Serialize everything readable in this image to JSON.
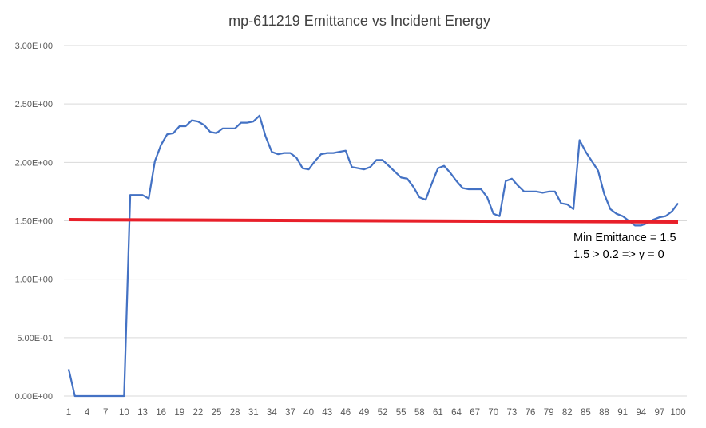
{
  "chart_data": {
    "type": "line",
    "title": "mp-611219 Emittance vs Incident Energy",
    "xlabel": "",
    "ylabel": "",
    "ylim": [
      0,
      3.0
    ],
    "grid": true,
    "y_tick_labels": [
      "0.00E+00",
      "5.00E-01",
      "1.00E+00",
      "1.50E+00",
      "2.00E+00",
      "2.50E+00",
      "3.00E+00"
    ],
    "x_tick_labels": [
      "1",
      "4",
      "7",
      "10",
      "13",
      "16",
      "19",
      "22",
      "25",
      "28",
      "31",
      "34",
      "37",
      "40",
      "43",
      "46",
      "49",
      "52",
      "55",
      "58",
      "61",
      "64",
      "67",
      "70",
      "73",
      "76",
      "79",
      "82",
      "85",
      "88",
      "91",
      "94",
      "97",
      "100"
    ],
    "series": [
      {
        "color": "#4472c4",
        "x": [
          1,
          2,
          3,
          4,
          5,
          6,
          7,
          8,
          9,
          10,
          11,
          12,
          13,
          14,
          15,
          16,
          17,
          18,
          19,
          20,
          21,
          22,
          23,
          24,
          25,
          26,
          27,
          28,
          29,
          30,
          31,
          32,
          33,
          34,
          35,
          36,
          37,
          38,
          39,
          40,
          41,
          42,
          43,
          44,
          45,
          46,
          47,
          48,
          49,
          50,
          51,
          52,
          53,
          54,
          55,
          56,
          57,
          58,
          59,
          60,
          61,
          62,
          63,
          64,
          65,
          66,
          67,
          68,
          69,
          70,
          71,
          72,
          73,
          74,
          75,
          76,
          77,
          78,
          79,
          80,
          81,
          82,
          83,
          84,
          85,
          86,
          87,
          88,
          89,
          90,
          91,
          92,
          93,
          94,
          95,
          96,
          97,
          98,
          99,
          100
        ],
        "values": [
          0.23,
          0,
          0,
          0,
          0,
          0,
          0,
          0,
          0,
          0,
          1.72,
          1.72,
          1.72,
          1.69,
          2.01,
          2.15,
          2.24,
          2.25,
          2.31,
          2.31,
          2.36,
          2.35,
          2.32,
          2.26,
          2.25,
          2.29,
          2.29,
          2.29,
          2.34,
          2.34,
          2.35,
          2.4,
          2.22,
          2.09,
          2.07,
          2.08,
          2.08,
          2.04,
          1.95,
          1.94,
          2.01,
          2.07,
          2.08,
          2.08,
          2.09,
          2.1,
          1.96,
          1.95,
          1.94,
          1.96,
          2.02,
          2.02,
          1.97,
          1.92,
          1.87,
          1.86,
          1.79,
          1.7,
          1.68,
          1.82,
          1.95,
          1.97,
          1.91,
          1.84,
          1.78,
          1.77,
          1.77,
          1.77,
          1.7,
          1.56,
          1.54,
          1.84,
          1.86,
          1.8,
          1.75,
          1.75,
          1.75,
          1.74,
          1.75,
          1.75,
          1.65,
          1.64,
          1.6,
          2.19,
          2.09,
          2.01,
          1.93,
          1.73,
          1.6,
          1.56,
          1.54,
          1.5,
          1.46,
          1.46,
          1.48,
          1.51,
          1.53,
          1.54,
          1.58,
          1.65
        ]
      },
      {
        "color": "#e8202a",
        "x": [
          1,
          100
        ],
        "values": [
          1.51,
          1.49
        ]
      }
    ],
    "annotations": [
      "Min Emittance = 1.5",
      "1.5 > 0.2 => y = 0"
    ]
  }
}
